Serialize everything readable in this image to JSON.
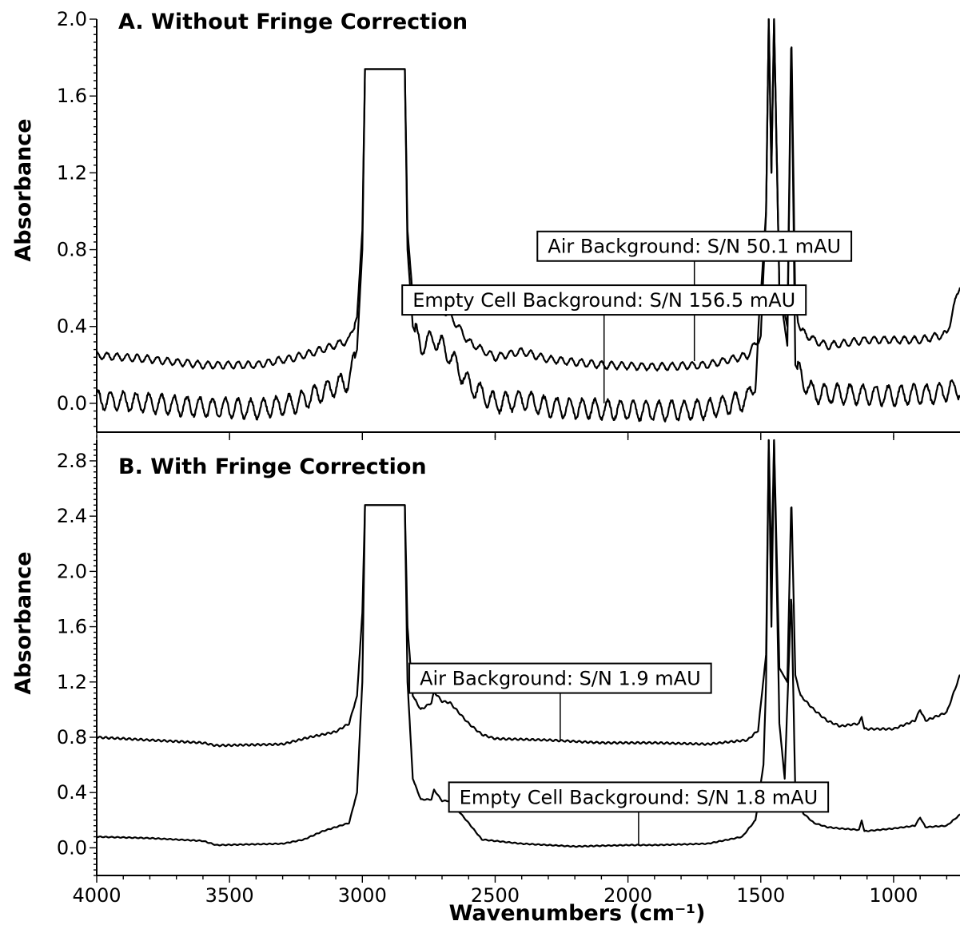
{
  "chart_data": [
    {
      "type": "line",
      "panel_title": "A. Without Fringe Correction",
      "xlabel": "",
      "ylabel": "Absorbance",
      "xlim": [
        4000,
        750
      ],
      "ylim": [
        -0.15,
        2.0
      ],
      "x_ticks": [],
      "y_ticks": [
        "0.0",
        "0.4",
        "0.8",
        "1.2",
        "1.6",
        "2.0"
      ],
      "y_tick_values": [
        0,
        0.4,
        0.8,
        1.2,
        1.6,
        2.0
      ],
      "series": [
        {
          "baseline": [
            [
              4000,
              0.25
            ],
            [
              3800,
              0.23
            ],
            [
              3600,
              0.2
            ],
            [
              3400,
              0.2
            ],
            [
              3250,
              0.24
            ],
            [
              3150,
              0.28
            ],
            [
              3050,
              0.33
            ],
            [
              3020,
              0.45
            ],
            [
              3000,
              0.9
            ],
            [
              2990,
              1.74
            ],
            [
              2840,
              1.74
            ],
            [
              2830,
              0.9
            ],
            [
              2810,
              0.55
            ],
            [
              2780,
              0.48
            ],
            [
              2730,
              0.52
            ],
            [
              2670,
              0.46
            ],
            [
              2600,
              0.32
            ],
            [
              2500,
              0.24
            ],
            [
              2400,
              0.27
            ],
            [
              2300,
              0.23
            ],
            [
              2100,
              0.2
            ],
            [
              1900,
              0.19
            ],
            [
              1700,
              0.2
            ],
            [
              1550,
              0.25
            ],
            [
              1500,
              0.35
            ],
            [
              1480,
              1.0
            ],
            [
              1470,
              2.0
            ],
            [
              1460,
              1.2
            ],
            [
              1450,
              2.0
            ],
            [
              1430,
              0.6
            ],
            [
              1400,
              0.4
            ],
            [
              1385,
              1.95
            ],
            [
              1370,
              0.5
            ],
            [
              1350,
              0.38
            ],
            [
              1300,
              0.33
            ],
            [
              1250,
              0.3
            ],
            [
              1100,
              0.33
            ],
            [
              900,
              0.33
            ],
            [
              800,
              0.36
            ],
            [
              750,
              0.62
            ]
          ],
          "fringe_amplitude": 0.018,
          "fringe_period": 38
        },
        {
          "baseline": [
            [
              4000,
              0.02
            ],
            [
              3800,
              0.0
            ],
            [
              3600,
              -0.02
            ],
            [
              3400,
              -0.03
            ],
            [
              3250,
              0.0
            ],
            [
              3150,
              0.06
            ],
            [
              3050,
              0.12
            ],
            [
              3020,
              0.28
            ],
            [
              3000,
              0.8
            ],
            [
              2990,
              1.74
            ],
            [
              2840,
              1.74
            ],
            [
              2830,
              0.8
            ],
            [
              2810,
              0.4
            ],
            [
              2780,
              0.3
            ],
            [
              2730,
              0.34
            ],
            [
              2670,
              0.25
            ],
            [
              2600,
              0.1
            ],
            [
              2500,
              0.0
            ],
            [
              2400,
              0.02
            ],
            [
              2300,
              -0.02
            ],
            [
              2100,
              -0.03
            ],
            [
              1900,
              -0.04
            ],
            [
              1700,
              -0.03
            ],
            [
              1550,
              0.02
            ],
            [
              1520,
              0.12
            ],
            [
              1480,
              1.0
            ],
            [
              1470,
              2.0
            ],
            [
              1460,
              1.2
            ],
            [
              1450,
              2.0
            ],
            [
              1430,
              0.6
            ],
            [
              1400,
              0.3
            ],
            [
              1385,
              1.9
            ],
            [
              1370,
              0.2
            ],
            [
              1340,
              0.12
            ],
            [
              1300,
              0.05
            ],
            [
              1200,
              0.05
            ],
            [
              1000,
              0.04
            ],
            [
              850,
              0.05
            ],
            [
              750,
              0.08
            ]
          ],
          "fringe_amplitude": 0.05,
          "fringe_period": 48
        }
      ],
      "annotations": [
        {
          "text": "Air Background: S/N 50.1 mAU",
          "pointer_x": 1750,
          "pointer_y": 0.22,
          "box_y": 0.82
        },
        {
          "text": "Empty Cell Background: S/N 156.5 mAU",
          "pointer_x": 2090,
          "pointer_y": 0.0,
          "box_y": 0.54
        }
      ]
    },
    {
      "type": "line",
      "panel_title": "B. With Fringe Correction",
      "xlabel": "Wavenumbers (cm⁻¹)",
      "ylabel": "Absorbance",
      "xlim": [
        4000,
        750
      ],
      "ylim": [
        -0.2,
        2.95
      ],
      "x_ticks": [
        "4000",
        "3500",
        "3000",
        "2500",
        "2000",
        "1500",
        "1000"
      ],
      "x_tick_values": [
        4000,
        3500,
        3000,
        2500,
        2000,
        1500,
        1000
      ],
      "y_ticks": [
        "0.0",
        "0.4",
        "0.8",
        "1.2",
        "1.6",
        "2.0",
        "2.4",
        "2.8"
      ],
      "y_tick_values": [
        0,
        0.4,
        0.8,
        1.2,
        1.6,
        2.0,
        2.4,
        2.8
      ],
      "series": [
        {
          "baseline": [
            [
              4000,
              0.8
            ],
            [
              3800,
              0.78
            ],
            [
              3600,
              0.76
            ],
            [
              3550,
              0.74
            ],
            [
              3300,
              0.75
            ],
            [
              3200,
              0.8
            ],
            [
              3100,
              0.84
            ],
            [
              3050,
              0.9
            ],
            [
              3020,
              1.1
            ],
            [
              3000,
              1.7
            ],
            [
              2990,
              2.48
            ],
            [
              2840,
              2.48
            ],
            [
              2830,
              1.6
            ],
            [
              2810,
              1.1
            ],
            [
              2780,
              1.0
            ],
            [
              2740,
              1.05
            ],
            [
              2730,
              1.13
            ],
            [
              2700,
              1.06
            ],
            [
              2670,
              1.05
            ],
            [
              2600,
              0.9
            ],
            [
              2550,
              0.82
            ],
            [
              2500,
              0.79
            ],
            [
              2300,
              0.78
            ],
            [
              2100,
              0.76
            ],
            [
              1900,
              0.76
            ],
            [
              1700,
              0.75
            ],
            [
              1550,
              0.78
            ],
            [
              1510,
              0.85
            ],
            [
              1480,
              1.4
            ],
            [
              1470,
              2.95
            ],
            [
              1460,
              2.0
            ],
            [
              1450,
              2.95
            ],
            [
              1430,
              1.3
            ],
            [
              1400,
              1.2
            ],
            [
              1385,
              2.55
            ],
            [
              1370,
              1.25
            ],
            [
              1350,
              1.1
            ],
            [
              1300,
              1.0
            ],
            [
              1250,
              0.92
            ],
            [
              1200,
              0.88
            ],
            [
              1130,
              0.9
            ],
            [
              1120,
              0.95
            ],
            [
              1110,
              0.86
            ],
            [
              1000,
              0.86
            ],
            [
              920,
              0.92
            ],
            [
              900,
              1.0
            ],
            [
              880,
              0.92
            ],
            [
              800,
              0.98
            ],
            [
              750,
              1.25
            ]
          ],
          "fringe_amplitude": 0.006,
          "fringe_period": 22
        },
        {
          "baseline": [
            [
              4000,
              0.08
            ],
            [
              3800,
              0.07
            ],
            [
              3600,
              0.05
            ],
            [
              3550,
              0.02
            ],
            [
              3300,
              0.03
            ],
            [
              3220,
              0.06
            ],
            [
              3150,
              0.12
            ],
            [
              3050,
              0.18
            ],
            [
              3020,
              0.4
            ],
            [
              3000,
              1.2
            ],
            [
              2990,
              2.48
            ],
            [
              2840,
              2.48
            ],
            [
              2830,
              1.2
            ],
            [
              2810,
              0.5
            ],
            [
              2780,
              0.35
            ],
            [
              2740,
              0.35
            ],
            [
              2730,
              0.42
            ],
            [
              2700,
              0.34
            ],
            [
              2670,
              0.34
            ],
            [
              2600,
              0.18
            ],
            [
              2550,
              0.06
            ],
            [
              2400,
              0.03
            ],
            [
              2200,
              0.01
            ],
            [
              2000,
              0.02
            ],
            [
              1900,
              0.02
            ],
            [
              1700,
              0.03
            ],
            [
              1570,
              0.08
            ],
            [
              1520,
              0.2
            ],
            [
              1490,
              0.6
            ],
            [
              1480,
              1.2
            ],
            [
              1470,
              2.95
            ],
            [
              1460,
              1.6
            ],
            [
              1450,
              2.95
            ],
            [
              1430,
              0.9
            ],
            [
              1410,
              0.5
            ],
            [
              1385,
              1.85
            ],
            [
              1370,
              0.4
            ],
            [
              1340,
              0.25
            ],
            [
              1300,
              0.18
            ],
            [
              1250,
              0.15
            ],
            [
              1200,
              0.14
            ],
            [
              1130,
              0.13
            ],
            [
              1120,
              0.2
            ],
            [
              1110,
              0.12
            ],
            [
              1000,
              0.14
            ],
            [
              920,
              0.16
            ],
            [
              900,
              0.22
            ],
            [
              880,
              0.15
            ],
            [
              800,
              0.16
            ],
            [
              750,
              0.24
            ]
          ],
          "fringe_amplitude": 0.003,
          "fringe_period": 22
        }
      ],
      "annotations": [
        {
          "text": "Air Background: S/N 1.9 mAU",
          "pointer_x": 2255,
          "pointer_y": 0.78,
          "box_y": 1.23
        },
        {
          "text": "Empty Cell Background: S/N 1.8 mAU",
          "pointer_x": 1960,
          "pointer_y": 0.02,
          "box_y": 0.37
        }
      ]
    }
  ]
}
